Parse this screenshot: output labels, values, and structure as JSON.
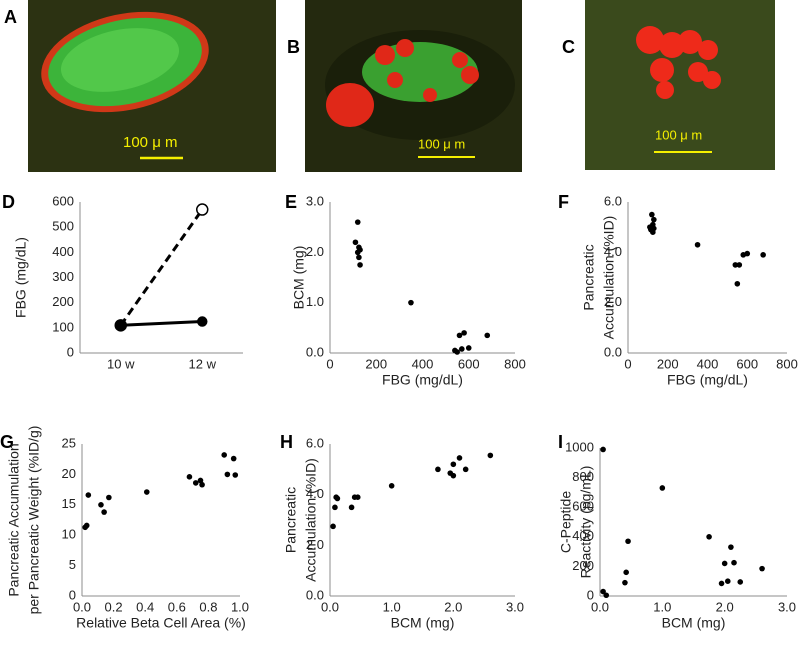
{
  "images": [
    {
      "label": "A",
      "scale_bar": "100 μ m"
    },
    {
      "label": "B",
      "scale_bar": "100 μ m"
    },
    {
      "label": "C",
      "scale_bar": "100 μ m"
    }
  ],
  "chart_data": [
    {
      "panel": "D",
      "type": "line",
      "categories": [
        "10 w",
        "12 w"
      ],
      "series": [
        {
          "values": [
            110,
            570
          ],
          "color": "#000000",
          "dashed": true,
          "marker": "open"
        },
        {
          "values": [
            110,
            125
          ],
          "color": "#000000",
          "dashed": false,
          "marker": "filled"
        }
      ],
      "ylim": [
        0,
        600
      ],
      "yticks": [
        0,
        100,
        200,
        300,
        400,
        500,
        600
      ],
      "ylabel": [
        "FBG (mg/dL)"
      ]
    },
    {
      "panel": "E",
      "type": "scatter",
      "color": "#000000",
      "x": [
        110,
        120,
        120,
        125,
        125,
        130,
        130,
        350,
        540,
        550,
        560,
        570,
        580,
        600,
        680
      ],
      "values": [
        2.2,
        2.6,
        2.0,
        2.1,
        1.9,
        1.75,
        2.05,
        1.0,
        0.05,
        0.02,
        0.35,
        0.08,
        0.4,
        0.1,
        0.35
      ],
      "xlim": [
        0,
        800
      ],
      "xticks": [
        0,
        200,
        400,
        600,
        800
      ],
      "ylim": [
        0,
        3
      ],
      "yticks": [
        {
          "value": 0,
          "label": "0.0"
        },
        {
          "value": 1,
          "label": "1.0"
        },
        {
          "value": 2,
          "label": "2.0"
        },
        {
          "value": 3,
          "label": "3.0"
        }
      ],
      "xlabel": "FBG (mg/dL)",
      "ylabel": [
        "BCM (mg)"
      ]
    },
    {
      "panel": "F",
      "type": "scatter",
      "color": "#000000",
      "x": [
        110,
        115,
        120,
        125,
        125,
        130,
        130,
        350,
        540,
        550,
        560,
        580,
        600,
        680
      ],
      "values": [
        5.0,
        4.9,
        5.5,
        5.1,
        4.8,
        5.3,
        4.95,
        4.3,
        3.5,
        2.75,
        3.5,
        3.9,
        3.95,
        3.9
      ],
      "xlim": [
        0,
        800
      ],
      "xticks": [
        0,
        200,
        400,
        600,
        800
      ],
      "ylim": [
        0,
        6
      ],
      "yticks": [
        {
          "value": 0,
          "label": "0.0"
        },
        {
          "value": 2,
          "label": "2.0"
        },
        {
          "value": 4,
          "label": "4.0"
        },
        {
          "value": 6,
          "label": "6.0"
        }
      ],
      "xlabel": "FBG (mg/dL)",
      "ylabel": [
        "Pancreatic",
        "Accumulation (%ID)"
      ]
    },
    {
      "panel": "G",
      "type": "scatter",
      "color": "#000000",
      "x": [
        0.02,
        0.03,
        0.04,
        0.12,
        0.14,
        0.17,
        0.41,
        0.68,
        0.72,
        0.75,
        0.76,
        0.9,
        0.92,
        0.96,
        0.97
      ],
      "values": [
        11.3,
        11.6,
        16.6,
        15.0,
        13.8,
        16.2,
        17.1,
        19.6,
        18.6,
        19.0,
        18.3,
        23.2,
        20.0,
        22.6,
        19.9
      ],
      "xlim": [
        0,
        1
      ],
      "xticks": [
        {
          "value": 0,
          "label": "0.0"
        },
        {
          "value": 0.2,
          "label": "0.2"
        },
        {
          "value": 0.4,
          "label": "0.4"
        },
        {
          "value": 0.6,
          "label": "0.6"
        },
        {
          "value": 0.8,
          "label": "0.8"
        },
        {
          "value": 1,
          "label": "1.0"
        }
      ],
      "ylim": [
        0,
        25
      ],
      "yticks": [
        0,
        5,
        10,
        15,
        20,
        25
      ],
      "xlabel": "Relative Beta Cell Area (%)",
      "ylabel": [
        "Pancreatic Accumulation",
        "per Pancreatic Weight (%ID/g)"
      ]
    },
    {
      "panel": "H",
      "type": "scatter",
      "color": "#000000",
      "x": [
        0.05,
        0.08,
        0.1,
        0.12,
        0.35,
        0.4,
        0.45,
        1.0,
        1.75,
        1.95,
        2.0,
        2.0,
        2.1,
        2.2,
        2.6
      ],
      "values": [
        2.75,
        3.5,
        3.9,
        3.85,
        3.5,
        3.9,
        3.9,
        4.35,
        5.0,
        4.85,
        5.2,
        4.75,
        5.45,
        5.0,
        5.55
      ],
      "xlim": [
        0,
        3
      ],
      "xticks": [
        {
          "value": 0,
          "label": "0.0"
        },
        {
          "value": 1,
          "label": "1.0"
        },
        {
          "value": 2,
          "label": "2.0"
        },
        {
          "value": 3,
          "label": "3.0"
        }
      ],
      "ylim": [
        0,
        6
      ],
      "yticks": [
        {
          "value": 0,
          "label": "0.0"
        },
        {
          "value": 2,
          "label": "2.0"
        },
        {
          "value": 4,
          "label": "4.0"
        },
        {
          "value": 6,
          "label": "6.0"
        }
      ],
      "xlabel": "BCM (mg)",
      "ylabel": [
        "Pancreatic",
        "Accumulation (%ID)"
      ]
    },
    {
      "panel": "I",
      "type": "scatter",
      "color": "#000000",
      "x": [
        0.05,
        0.05,
        0.1,
        0.4,
        0.42,
        0.45,
        1.0,
        1.75,
        1.95,
        2.0,
        2.05,
        2.1,
        2.15,
        2.25,
        2.6
      ],
      "values": [
        990,
        30,
        5,
        90,
        160,
        370,
        730,
        400,
        85,
        220,
        100,
        330,
        225,
        95,
        185
      ],
      "xlim": [
        0,
        3
      ],
      "xticks": [
        {
          "value": 0,
          "label": "0.0"
        },
        {
          "value": 1,
          "label": "1.0"
        },
        {
          "value": 2,
          "label": "2.0"
        },
        {
          "value": 3,
          "label": "3.0"
        }
      ],
      "ylim": [
        0,
        1000
      ],
      "yticks": [
        0,
        200,
        400,
        600,
        800,
        1000
      ],
      "xlabel": "BCM (mg)",
      "ylabel": [
        "C-Peptide",
        "Reactivity (pg/mL)"
      ]
    }
  ]
}
